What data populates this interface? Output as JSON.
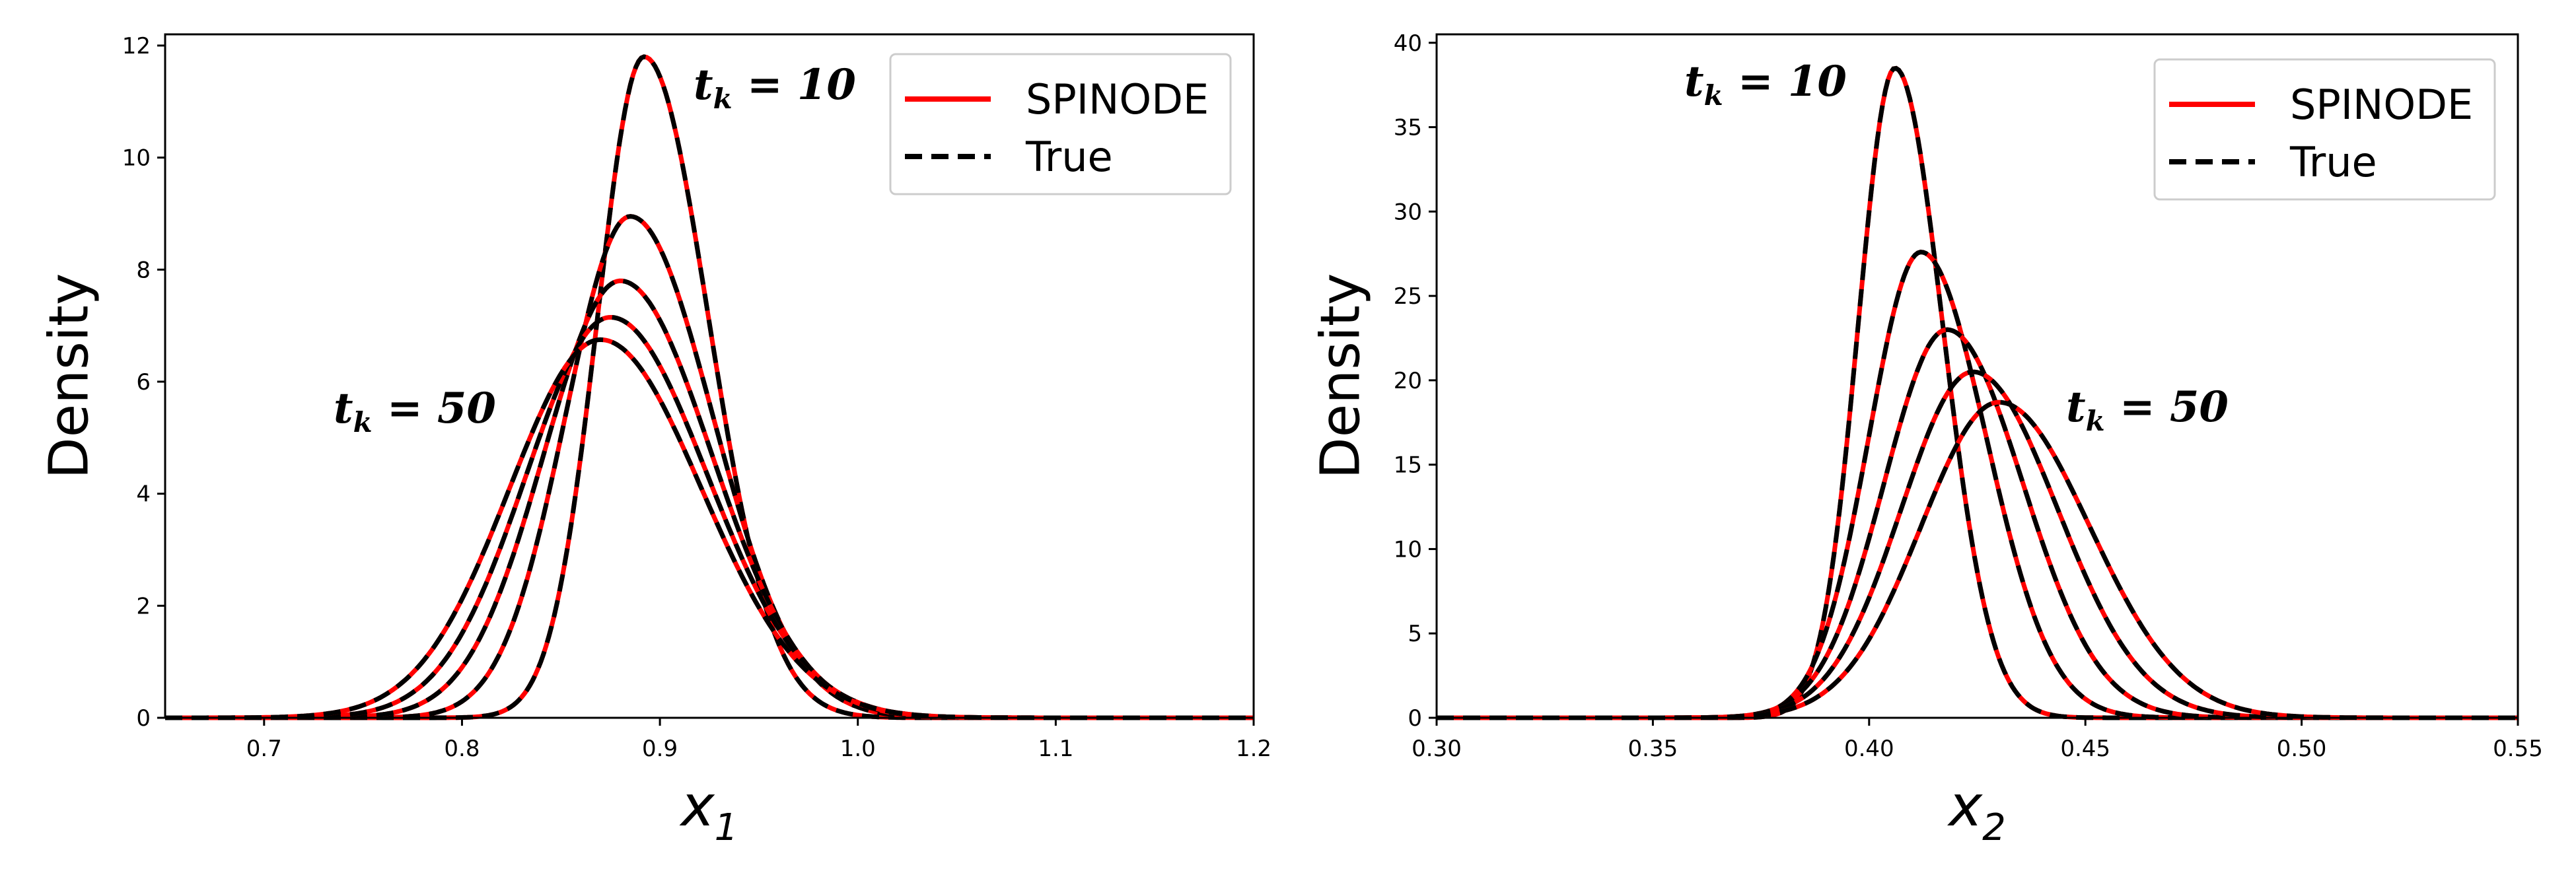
{
  "chart_data": [
    {
      "type": "line",
      "xlabel": "x",
      "xlabel_sub": "1",
      "ylabel": "Density",
      "xlim": [
        0.65,
        1.2
      ],
      "ylim": [
        0,
        12.2
      ],
      "xticks": [
        "0.7",
        "0.8",
        "0.9",
        "1.0",
        "1.1",
        "1.2"
      ],
      "yticks": [
        "0",
        "2",
        "4",
        "6",
        "8",
        "10",
        "12"
      ],
      "grid": false,
      "legend": {
        "placement": "top-right",
        "entries": [
          "SPINODE",
          "True"
        ]
      },
      "annotations": [
        {
          "prefix": "t",
          "sub": "k",
          "text": " = 10"
        },
        {
          "prefix": "t",
          "sub": "k",
          "text": " = 50"
        }
      ],
      "curves": [
        {
          "mean": 0.892,
          "left_sd": 0.0235,
          "right_sd": 0.0325,
          "peak": 11.8
        },
        {
          "mean": 0.885,
          "left_sd": 0.0325,
          "right_sd": 0.0415,
          "peak": 8.95
        },
        {
          "mean": 0.88,
          "left_sd": 0.0385,
          "right_sd": 0.046,
          "peak": 7.8
        },
        {
          "mean": 0.875,
          "left_sd": 0.0425,
          "right_sd": 0.049,
          "peak": 7.15
        },
        {
          "mean": 0.87,
          "left_sd": 0.046,
          "right_sd": 0.051,
          "peak": 6.75
        }
      ]
    },
    {
      "type": "line",
      "xlabel": "x",
      "xlabel_sub": "2",
      "ylabel": "Density",
      "xlim": [
        0.3,
        0.55
      ],
      "ylim": [
        0,
        40.5
      ],
      "xticks": [
        "0.30",
        "0.35",
        "0.40",
        "0.45",
        "0.50",
        "0.55"
      ],
      "yticks": [
        "0",
        "5",
        "10",
        "15",
        "20",
        "25",
        "30",
        "35",
        "40"
      ],
      "grid": false,
      "legend": {
        "placement": "top-right",
        "entries": [
          "SPINODE",
          "True"
        ]
      },
      "annotations": [
        {
          "prefix": "t",
          "sub": "k",
          "text": " = 10"
        },
        {
          "prefix": "t",
          "sub": "k",
          "text": " = 50"
        }
      ],
      "curves": [
        {
          "mean": 0.406,
          "left_sd": 0.0085,
          "right_sd": 0.011,
          "peak": 38.5
        },
        {
          "mean": 0.412,
          "left_sd": 0.012,
          "right_sd": 0.015,
          "peak": 27.6
        },
        {
          "mean": 0.418,
          "left_sd": 0.0145,
          "right_sd": 0.0175,
          "peak": 23.0
        },
        {
          "mean": 0.424,
          "left_sd": 0.0165,
          "right_sd": 0.0195,
          "peak": 20.5
        },
        {
          "mean": 0.43,
          "left_sd": 0.018,
          "right_sd": 0.021,
          "peak": 18.7
        }
      ]
    }
  ],
  "colors": {
    "spinode": "#ff0000",
    "true": "#000000",
    "legend_border": "#cccccc"
  }
}
